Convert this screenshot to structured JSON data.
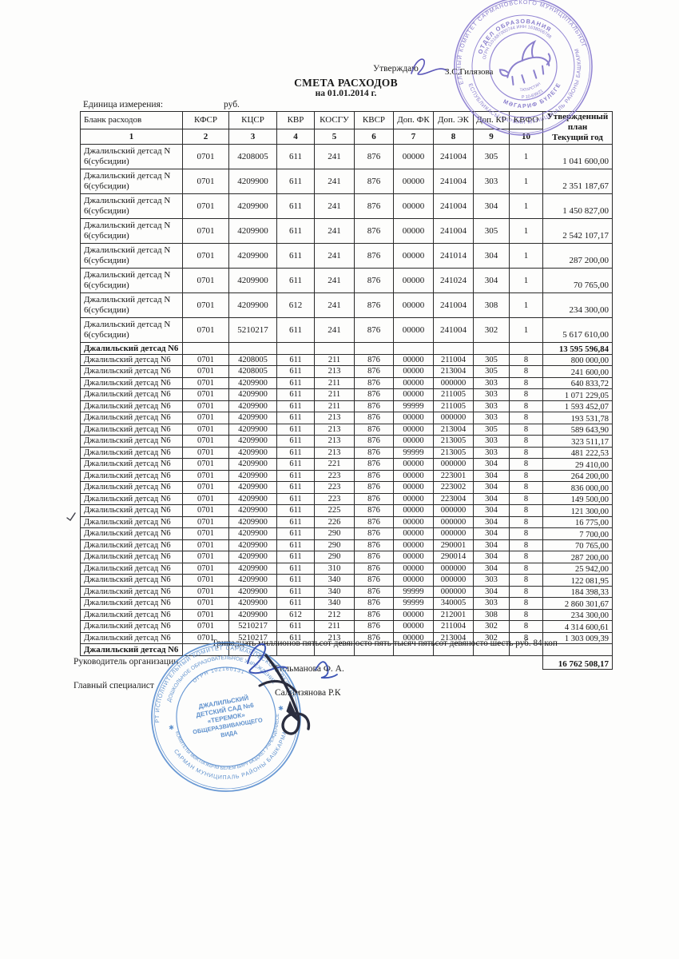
{
  "page": {
    "approve_label": "Утверждаю",
    "approver_name": "З.С.Гилязова",
    "title": "СМЕТА РАСХОДОВ",
    "subtitle": "на 01.01.2014 г.",
    "unit_label": "Единица измерения:",
    "unit_value": "руб."
  },
  "table": {
    "headers": [
      "Бланк расходов",
      "КФСР",
      "КЦСР",
      "КВР",
      "КОСГУ",
      "КВСР",
      "Доп. ФК",
      "Доп. ЭК",
      "Доп. КР",
      "КВФО"
    ],
    "header_numbers": [
      "1",
      "2",
      "3",
      "4",
      "5",
      "6",
      "7",
      "8",
      "9",
      "10"
    ],
    "plan_header_line1": "Утвержденный план",
    "plan_header_line2": "Текущий год",
    "section1": {
      "rows": [
        [
          "Джалильский детсад N 6(субсидии)",
          "0701",
          "4208005",
          "611",
          "241",
          "876",
          "00000",
          "241004",
          "305",
          "1",
          "1 041 600,00"
        ],
        [
          "Джалильский детсад N 6(субсидии)",
          "0701",
          "4209900",
          "611",
          "241",
          "876",
          "00000",
          "241004",
          "303",
          "1",
          "2 351 187,67"
        ],
        [
          "Джалильский детсад N 6(субсидии)",
          "0701",
          "4209900",
          "611",
          "241",
          "876",
          "00000",
          "241004",
          "304",
          "1",
          "1 450 827,00"
        ],
        [
          "Джалильский детсад N 6(субсидии)",
          "0701",
          "4209900",
          "611",
          "241",
          "876",
          "00000",
          "241004",
          "305",
          "1",
          "2 542 107,17"
        ],
        [
          "Джалильский детсад N 6(субсидии)",
          "0701",
          "4209900",
          "611",
          "241",
          "876",
          "00000",
          "241014",
          "304",
          "1",
          "287 200,00"
        ],
        [
          "Джалильский детсад N 6(субсидии)",
          "0701",
          "4209900",
          "611",
          "241",
          "876",
          "00000",
          "241024",
          "304",
          "1",
          "70 765,00"
        ],
        [
          "Джалильский детсад N 6(субсидии)",
          "0701",
          "4209900",
          "612",
          "241",
          "876",
          "00000",
          "241004",
          "308",
          "1",
          "234 300,00"
        ],
        [
          "Джалильский детсад N 6(субсидии)",
          "0701",
          "5210217",
          "611",
          "241",
          "876",
          "00000",
          "241004",
          "302",
          "1",
          "5 617 610,00"
        ]
      ],
      "subtotal_label": "Джалильский детсад N6",
      "subtotal_value": "13 595 596,84"
    },
    "section2": {
      "rows": [
        [
          "Джалильский детсад N6",
          "0701",
          "4208005",
          "611",
          "211",
          "876",
          "00000",
          "211004",
          "305",
          "8",
          "800 000,00"
        ],
        [
          "Джалильский детсад N6",
          "0701",
          "4208005",
          "611",
          "213",
          "876",
          "00000",
          "213004",
          "305",
          "8",
          "241 600,00"
        ],
        [
          "Джалильский детсад N6",
          "0701",
          "4209900",
          "611",
          "211",
          "876",
          "00000",
          "000000",
          "303",
          "8",
          "640 833,72"
        ],
        [
          "Джалильский детсад N6",
          "0701",
          "4209900",
          "611",
          "211",
          "876",
          "00000",
          "211005",
          "303",
          "8",
          "1 071 229,05"
        ],
        [
          "Джалильский детсад N6",
          "0701",
          "4209900",
          "611",
          "211",
          "876",
          "99999",
          "211005",
          "303",
          "8",
          "1 593 452,07"
        ],
        [
          "Джалильский детсад N6",
          "0701",
          "4209900",
          "611",
          "213",
          "876",
          "00000",
          "000000",
          "303",
          "8",
          "193 531,78"
        ],
        [
          "Джалильский детсад N6",
          "0701",
          "4209900",
          "611",
          "213",
          "876",
          "00000",
          "213004",
          "305",
          "8",
          "589 643,90"
        ],
        [
          "Джалильский детсад N6",
          "0701",
          "4209900",
          "611",
          "213",
          "876",
          "00000",
          "213005",
          "303",
          "8",
          "323 511,17"
        ],
        [
          "Джалильский детсад N6",
          "0701",
          "4209900",
          "611",
          "213",
          "876",
          "99999",
          "213005",
          "303",
          "8",
          "481 222,53"
        ],
        [
          "Джалильский детсад N6",
          "0701",
          "4209900",
          "611",
          "221",
          "876",
          "00000",
          "000000",
          "304",
          "8",
          "29 410,00"
        ],
        [
          "Джалильский детсад N6",
          "0701",
          "4209900",
          "611",
          "223",
          "876",
          "00000",
          "223001",
          "304",
          "8",
          "264 200,00"
        ],
        [
          "Джалильский детсад N6",
          "0701",
          "4209900",
          "611",
          "223",
          "876",
          "00000",
          "223002",
          "304",
          "8",
          "836 000,00"
        ],
        [
          "Джалильский детсад N6",
          "0701",
          "4209900",
          "611",
          "223",
          "876",
          "00000",
          "223004",
          "304",
          "8",
          "149 500,00"
        ],
        [
          "Джалильский детсад N6",
          "0701",
          "4209900",
          "611",
          "225",
          "876",
          "00000",
          "000000",
          "304",
          "8",
          "121 300,00"
        ],
        [
          "Джалильский детсад N6",
          "0701",
          "4209900",
          "611",
          "226",
          "876",
          "00000",
          "000000",
          "304",
          "8",
          "16 775,00"
        ],
        [
          "Джалильский детсад N6",
          "0701",
          "4209900",
          "611",
          "290",
          "876",
          "00000",
          "000000",
          "304",
          "8",
          "7 700,00"
        ],
        [
          "Джалильский детсад N6",
          "0701",
          "4209900",
          "611",
          "290",
          "876",
          "00000",
          "290001",
          "304",
          "8",
          "70 765,00"
        ],
        [
          "Джалильский детсад N6",
          "0701",
          "4209900",
          "611",
          "290",
          "876",
          "00000",
          "290014",
          "304",
          "8",
          "287 200,00"
        ],
        [
          "Джалильский детсад N6",
          "0701",
          "4209900",
          "611",
          "310",
          "876",
          "00000",
          "000000",
          "304",
          "8",
          "25 942,00"
        ],
        [
          "Джалильский детсад N6",
          "0701",
          "4209900",
          "611",
          "340",
          "876",
          "00000",
          "000000",
          "303",
          "8",
          "122 081,95"
        ],
        [
          "Джалильский детсад N6",
          "0701",
          "4209900",
          "611",
          "340",
          "876",
          "99999",
          "000000",
          "304",
          "8",
          "184 398,33"
        ],
        [
          "Джалильский детсад N6",
          "0701",
          "4209900",
          "611",
          "340",
          "876",
          "99999",
          "340005",
          "303",
          "8",
          "2 860 301,67"
        ],
        [
          "Джалильский детсад N6",
          "0701",
          "4209900",
          "612",
          "212",
          "876",
          "00000",
          "212001",
          "308",
          "8",
          "234 300,00"
        ],
        [
          "Джалильский детсад N6",
          "0701",
          "5210217",
          "611",
          "211",
          "876",
          "00000",
          "211004",
          "302",
          "8",
          "4 314 600,61"
        ],
        [
          "Джалильский детсад N6",
          "0701",
          "5210217",
          "611",
          "213",
          "876",
          "00000",
          "213004",
          "302",
          "8",
          "1 303 009,39"
        ]
      ],
      "subtotal_label": "Джалильский детсад N6",
      "total_value": "16 762 508,17"
    }
  },
  "footer": {
    "amount_words": "Тринадцать миллионов пятьсот девяносто пять тысяч пятьсот девяносто шесть  руб. 84 коп",
    "signatories": [
      {
        "role": "Руководитель организации",
        "name": "Гильманова Ф. А."
      },
      {
        "role": "Главный специалист",
        "name": "Салимзянова Р.К"
      }
    ]
  },
  "stamps": {
    "top": {
      "ring_outer_top": "ИСПОЛНИТЕЛЬНЫЙ КОМИТЕТ САРМАНОВСКОГО МУНИЦИПАЛЬНОГО РАЙОНА",
      "ring_outer_bottom": "ТАТАРСТАН РЕСПУБЛИКАСЫ САРМАН МУНИЦИПАЛЬ РАЙОНЫ БАШКАРМА КОМИТЕТЫ",
      "ring_inner_top": "ОТДЕЛ ОБРАЗОВАНИЯ",
      "ring_inner_top2": "ОГРН 1101687000744 ИНН 1638006788",
      "ring_inner_bottom": "МӘГАРИФ БҮЛЕГЕ",
      "ring_inner_bottom2": "Р 10-839/21",
      "emblem_caption": "ТАТАРСТАН"
    },
    "bottom": {
      "ring_outer_top": "РТ ИСПОЛНИТЕЛЬНЫЙ КОМИТЕТ САРМАНОВСКОГО РАЙОНА",
      "ring_inner_top": "ДОШКОЛЬНОЕ ОБРАЗОВАТЕЛЬНОЕ УЧРЕЖДЕНИЕ",
      "ring_inner_top2": "ОГРН 102160131",
      "ring_outer_bottom": "САРМАН МУНИЦИПАЛЬ РАЙОНЫ БАШКАРМА",
      "ring_inner_bottom": "КОМИТЕТЫ МӘКТӘПКӘЧӘ БЕЛЕМ БИРҮ БЮДЖЕТ УЧРЕЖДЕНИЕСЕ",
      "center_line1": "ДЖАЛИЛЬСКИЙ",
      "center_line2": "ДЕТСКИЙ САД №6",
      "center_line3": "«ТЕРЕМОК»",
      "center_line4": "ОБЩЕРАЗВИВАЮЩЕГО",
      "center_line5": "ВИДА",
      "star_left": "✱",
      "star_right": "✱"
    }
  },
  "colors": {
    "stamp_purple": "#7f72c8",
    "stamp_blue": "#4f86c8",
    "ink_blue": "#3a50b0",
    "ink_dark": "#2a2d3e"
  }
}
